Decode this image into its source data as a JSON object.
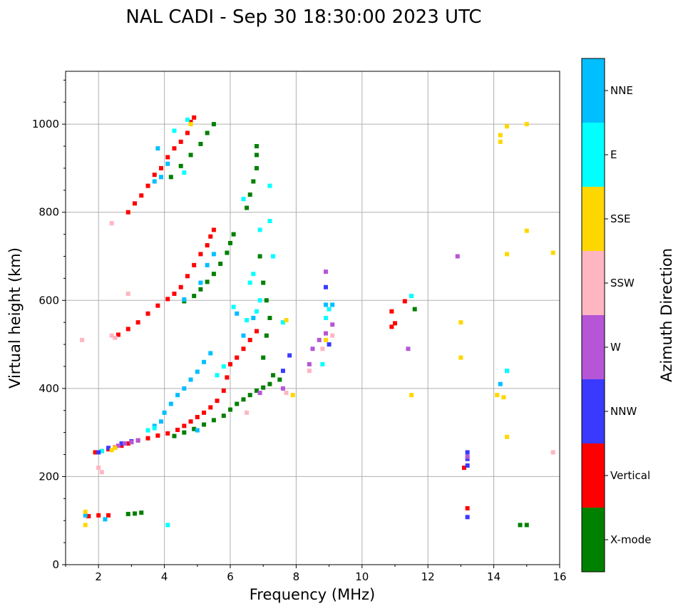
{
  "chart_data": {
    "type": "scatter",
    "title": "NAL CADI - Sep 30 18:30:00 2023 UTC",
    "xlabel": "Frequency (MHz)",
    "ylabel": "Virtual height (km)",
    "xlim": [
      1,
      16
    ],
    "ylim": [
      0,
      1120
    ],
    "x_ticks": [
      2,
      4,
      6,
      8,
      10,
      12,
      14,
      16
    ],
    "y_ticks": [
      0,
      200,
      400,
      600,
      800,
      1000
    ],
    "grid": true,
    "colorbar": {
      "label": "Azimuth Direction",
      "categories": [
        {
          "name": "X-mode",
          "color": "#008000"
        },
        {
          "name": "Vertical",
          "color": "#ff0000"
        },
        {
          "name": "NNW",
          "color": "#3a3aff"
        },
        {
          "name": "W",
          "color": "#b656d6"
        },
        {
          "name": "SSW",
          "color": "#ffb6c1"
        },
        {
          "name": "SSE",
          "color": "#ffd700"
        },
        {
          "name": "E",
          "color": "#00ffff"
        },
        {
          "name": "NNE",
          "color": "#00bfff"
        }
      ]
    },
    "series": [
      {
        "name": "Vertical",
        "points": [
          [
            1.7,
            110
          ],
          [
            2.0,
            112
          ],
          [
            2.3,
            112
          ],
          [
            1.9,
            255
          ],
          [
            2.1,
            258
          ],
          [
            2.3,
            262
          ],
          [
            2.5,
            266
          ],
          [
            2.7,
            270
          ],
          [
            2.9,
            275
          ],
          [
            3.2,
            282
          ],
          [
            3.5,
            287
          ],
          [
            3.8,
            293
          ],
          [
            4.1,
            298
          ],
          [
            4.4,
            306
          ],
          [
            4.6,
            315
          ],
          [
            4.8,
            325
          ],
          [
            5.0,
            335
          ],
          [
            5.2,
            345
          ],
          [
            5.4,
            357
          ],
          [
            5.6,
            372
          ],
          [
            5.8,
            395
          ],
          [
            5.9,
            425
          ],
          [
            6.0,
            455
          ],
          [
            6.2,
            470
          ],
          [
            6.4,
            490
          ],
          [
            6.6,
            510
          ],
          [
            6.8,
            530
          ],
          [
            2.6,
            522
          ],
          [
            2.9,
            535
          ],
          [
            3.2,
            550
          ],
          [
            3.5,
            570
          ],
          [
            3.8,
            588
          ],
          [
            4.1,
            603
          ],
          [
            4.3,
            615
          ],
          [
            4.5,
            630
          ],
          [
            4.7,
            655
          ],
          [
            4.9,
            680
          ],
          [
            5.1,
            705
          ],
          [
            5.3,
            725
          ],
          [
            5.4,
            745
          ],
          [
            5.5,
            760
          ],
          [
            2.9,
            800
          ],
          [
            3.1,
            820
          ],
          [
            3.3,
            838
          ],
          [
            3.5,
            860
          ],
          [
            3.7,
            885
          ],
          [
            3.9,
            900
          ],
          [
            4.1,
            925
          ],
          [
            4.3,
            945
          ],
          [
            4.5,
            960
          ],
          [
            4.7,
            980
          ],
          [
            4.8,
            1005
          ],
          [
            4.9,
            1015
          ],
          [
            10.9,
            540
          ],
          [
            11.0,
            548
          ],
          [
            10.9,
            575
          ],
          [
            11.3,
            598
          ],
          [
            13.2,
            128
          ],
          [
            13.1,
            220
          ]
        ]
      },
      {
        "name": "X-mode",
        "points": [
          [
            2.9,
            115
          ],
          [
            3.1,
            116
          ],
          [
            3.3,
            118
          ],
          [
            4.3,
            292
          ],
          [
            4.6,
            300
          ],
          [
            4.9,
            308
          ],
          [
            5.2,
            318
          ],
          [
            5.5,
            328
          ],
          [
            5.8,
            338
          ],
          [
            6.0,
            352
          ],
          [
            6.2,
            365
          ],
          [
            6.4,
            375
          ],
          [
            6.6,
            385
          ],
          [
            6.8,
            395
          ],
          [
            7.0,
            402
          ],
          [
            7.2,
            410
          ],
          [
            4.6,
            598
          ],
          [
            4.9,
            610
          ],
          [
            5.1,
            625
          ],
          [
            5.3,
            642
          ],
          [
            5.5,
            660
          ],
          [
            5.7,
            683
          ],
          [
            5.9,
            708
          ],
          [
            6.0,
            730
          ],
          [
            6.1,
            750
          ],
          [
            4.2,
            880
          ],
          [
            4.5,
            905
          ],
          [
            4.8,
            930
          ],
          [
            5.1,
            955
          ],
          [
            5.3,
            980
          ],
          [
            5.5,
            1000
          ],
          [
            6.5,
            810
          ],
          [
            6.6,
            840
          ],
          [
            6.7,
            870
          ],
          [
            6.8,
            900
          ],
          [
            6.8,
            930
          ],
          [
            6.8,
            950
          ],
          [
            6.9,
            700
          ],
          [
            7.0,
            640
          ],
          [
            7.1,
            600
          ],
          [
            7.2,
            560
          ],
          [
            7.1,
            520
          ],
          [
            7.0,
            470
          ],
          [
            7.3,
            430
          ],
          [
            7.5,
            420
          ],
          [
            11.6,
            580
          ],
          [
            14.8,
            90
          ],
          [
            15.0,
            90
          ]
        ]
      },
      {
        "name": "NNE",
        "points": [
          [
            1.6,
            112
          ],
          [
            2.2,
            103
          ],
          [
            4.0,
            345
          ],
          [
            4.2,
            365
          ],
          [
            4.4,
            385
          ],
          [
            4.6,
            400
          ],
          [
            4.8,
            420
          ],
          [
            5.0,
            438
          ],
          [
            5.2,
            460
          ],
          [
            5.4,
            480
          ],
          [
            3.7,
            315
          ],
          [
            3.9,
            325
          ],
          [
            5.0,
            305
          ],
          [
            4.6,
            602
          ],
          [
            5.1,
            640
          ],
          [
            5.3,
            680
          ],
          [
            5.5,
            705
          ],
          [
            3.7,
            870
          ],
          [
            3.9,
            880
          ],
          [
            4.1,
            910
          ],
          [
            3.8,
            945
          ],
          [
            14.4,
            440
          ],
          [
            14.2,
            410
          ],
          [
            6.2,
            570
          ],
          [
            6.7,
            560
          ],
          [
            6.4,
            520
          ],
          [
            8.9,
            590
          ],
          [
            9.1,
            590
          ]
        ]
      },
      {
        "name": "E",
        "points": [
          [
            2.1,
            258
          ],
          [
            3.5,
            305
          ],
          [
            3.7,
            310
          ],
          [
            6.6,
            640
          ],
          [
            6.7,
            660
          ],
          [
            6.9,
            760
          ],
          [
            7.2,
            780
          ],
          [
            7.2,
            860
          ],
          [
            6.4,
            830
          ],
          [
            6.1,
            585
          ],
          [
            6.5,
            555
          ],
          [
            6.8,
            575
          ],
          [
            6.9,
            600
          ],
          [
            7.3,
            700
          ],
          [
            5.6,
            430
          ],
          [
            5.8,
            450
          ],
          [
            7.6,
            550
          ],
          [
            8.9,
            560
          ],
          [
            9.0,
            580
          ],
          [
            8.8,
            455
          ],
          [
            11.5,
            610
          ],
          [
            14.4,
            440
          ],
          [
            4.3,
            985
          ],
          [
            4.6,
            890
          ],
          [
            4.7,
            1010
          ],
          [
            4.1,
            90
          ]
        ]
      },
      {
        "name": "NNW",
        "points": [
          [
            2.0,
            255
          ],
          [
            2.3,
            265
          ],
          [
            2.7,
            275
          ],
          [
            3.0,
            280
          ],
          [
            13.2,
            225
          ],
          [
            13.2,
            240
          ],
          [
            13.2,
            255
          ],
          [
            13.2,
            108
          ],
          [
            8.9,
            630
          ],
          [
            9.0,
            500
          ],
          [
            7.8,
            475
          ],
          [
            7.6,
            440
          ]
        ]
      },
      {
        "name": "W",
        "points": [
          [
            2.6,
            270
          ],
          [
            2.8,
            275
          ],
          [
            3.0,
            278
          ],
          [
            3.2,
            282
          ],
          [
            6.9,
            390
          ],
          [
            7.6,
            400
          ],
          [
            8.4,
            455
          ],
          [
            8.5,
            490
          ],
          [
            8.7,
            510
          ],
          [
            8.9,
            525
          ],
          [
            9.1,
            545
          ],
          [
            8.9,
            665
          ],
          [
            12.9,
            700
          ],
          [
            13.2,
            245
          ],
          [
            11.4,
            490
          ]
        ]
      },
      {
        "name": "SSW",
        "points": [
          [
            1.5,
            510
          ],
          [
            2.0,
            220
          ],
          [
            2.1,
            210
          ],
          [
            2.4,
            520
          ],
          [
            2.5,
            515
          ],
          [
            2.4,
            775
          ],
          [
            2.9,
            615
          ],
          [
            8.4,
            440
          ],
          [
            8.8,
            490
          ],
          [
            9.1,
            520
          ],
          [
            15.8,
            255
          ],
          [
            7.7,
            390
          ],
          [
            6.5,
            345
          ]
        ]
      },
      {
        "name": "SSE",
        "points": [
          [
            1.6,
            90
          ],
          [
            1.6,
            120
          ],
          [
            2.4,
            260
          ],
          [
            2.5,
            265
          ],
          [
            4.8,
            1000
          ],
          [
            13.0,
            470
          ],
          [
            13.0,
            550
          ],
          [
            14.1,
            385
          ],
          [
            14.3,
            380
          ],
          [
            14.4,
            290
          ],
          [
            14.2,
            960
          ],
          [
            14.2,
            975
          ],
          [
            14.4,
            995
          ],
          [
            15.0,
            1000
          ],
          [
            15.0,
            758
          ],
          [
            15.8,
            708
          ],
          [
            14.4,
            705
          ],
          [
            7.7,
            555
          ],
          [
            7.9,
            385
          ],
          [
            8.9,
            510
          ],
          [
            11.5,
            385
          ]
        ]
      }
    ]
  }
}
